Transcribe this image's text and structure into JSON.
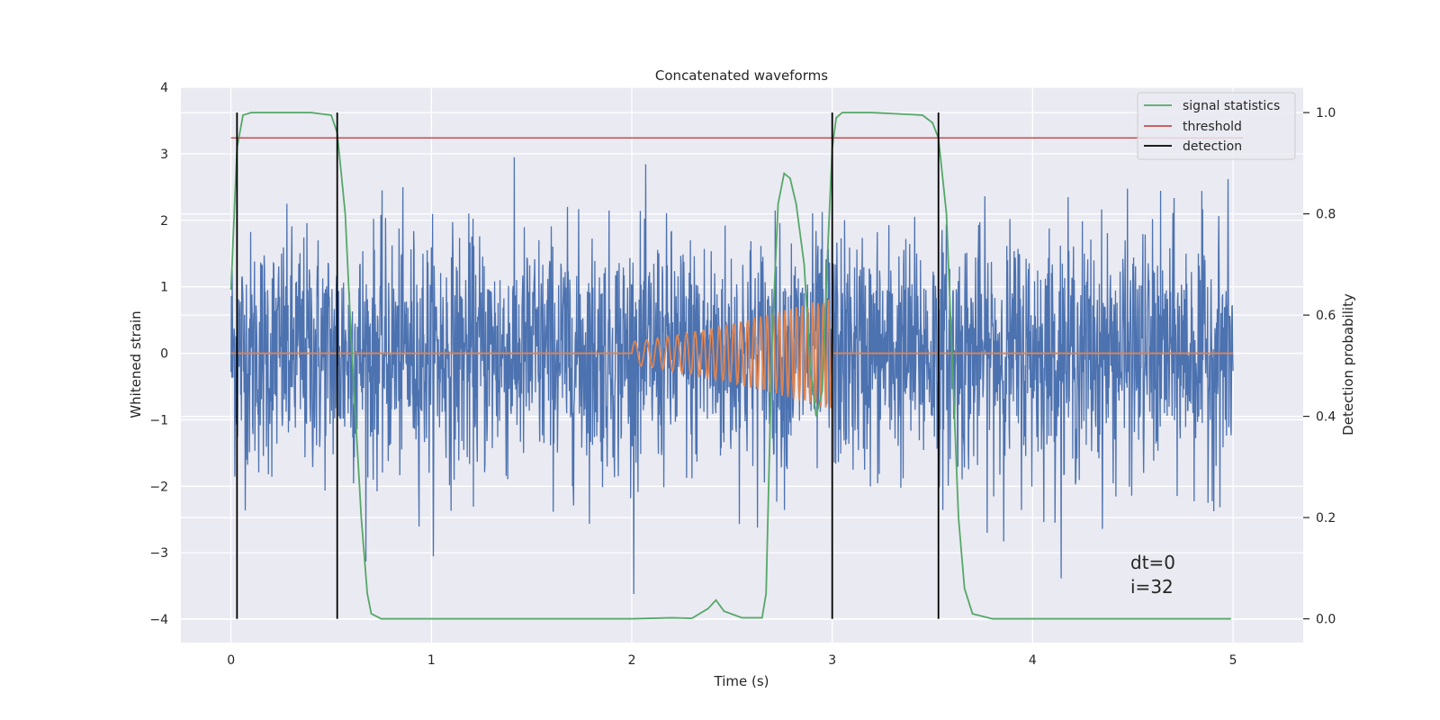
{
  "chart_data": {
    "type": "line",
    "title": "Concatenated waveforms",
    "xlabel": "Time (s)",
    "ylabel_left": "Whitened strain",
    "ylabel_right": "Detection probability",
    "xlim": [
      -0.25,
      5.35
    ],
    "ylim_left": [
      -4.35,
      4.0
    ],
    "ylim_right": [
      -0.047,
      1.05
    ],
    "x_ticks": [
      0,
      1,
      2,
      3,
      4,
      5
    ],
    "y_left_ticks": [
      -4,
      -3,
      -2,
      -1,
      0,
      1,
      2,
      3,
      4
    ],
    "y_right_ticks": [
      0.0,
      0.2,
      0.4,
      0.6,
      0.8,
      1.0
    ],
    "grid": true,
    "legend_position": "top-right",
    "annotations": [
      "dt=0",
      "i=32"
    ],
    "series": [
      {
        "name": "",
        "kind": "whitened strain noise (dense)",
        "axis": "left",
        "color": "#4c72b0",
        "x_range": [
          0,
          5
        ],
        "typical_amplitude": 0.9,
        "min": -4.0,
        "max": 3.3
      },
      {
        "name": "",
        "kind": "injected chirp signal",
        "axis": "left",
        "color": "#dd8452",
        "x_range": [
          0,
          5
        ],
        "chirp_start": 2.0,
        "chirp_end": 3.0,
        "chirp_peak_amplitude": 0.85,
        "baseline": 0
      },
      {
        "name": "signal statistics",
        "axis": "right",
        "color": "#55a868",
        "x": [
          0.0,
          0.03,
          0.06,
          0.1,
          0.2,
          0.4,
          0.5,
          0.53,
          0.57,
          0.6,
          0.65,
          0.68,
          0.7,
          0.75,
          1.0,
          1.5,
          2.0,
          2.2,
          2.3,
          2.38,
          2.42,
          2.46,
          2.55,
          2.65,
          2.67,
          2.7,
          2.73,
          2.76,
          2.79,
          2.82,
          2.86,
          2.89,
          2.92,
          2.95,
          2.98,
          3.0,
          3.02,
          3.05,
          3.1,
          3.2,
          3.45,
          3.5,
          3.53,
          3.57,
          3.6,
          3.63,
          3.66,
          3.7,
          3.8,
          4.0,
          4.5,
          4.99
        ],
        "values": [
          0.65,
          0.93,
          0.995,
          1.0,
          1.0,
          1.0,
          0.995,
          0.96,
          0.8,
          0.55,
          0.2,
          0.05,
          0.01,
          0.0,
          0.0,
          0.0,
          0.0,
          0.002,
          0.001,
          0.02,
          0.037,
          0.015,
          0.002,
          0.002,
          0.05,
          0.55,
          0.82,
          0.88,
          0.87,
          0.82,
          0.7,
          0.5,
          0.4,
          0.45,
          0.75,
          0.93,
          0.99,
          1.0,
          1.0,
          1.0,
          0.995,
          0.98,
          0.95,
          0.8,
          0.5,
          0.2,
          0.06,
          0.01,
          0.0,
          0.0,
          0.0,
          0.0
        ]
      },
      {
        "name": "threshold",
        "axis": "right",
        "color": "#c44e52",
        "x": [
          0,
          5.05
        ],
        "values": [
          0.95,
          0.95
        ]
      },
      {
        "name": "detection",
        "axis": "right",
        "color": "#000000",
        "kind": "vertical lines",
        "x": [
          0.03,
          0.53,
          3.0,
          3.53
        ],
        "range": [
          0.0,
          1.0
        ]
      }
    ]
  }
}
